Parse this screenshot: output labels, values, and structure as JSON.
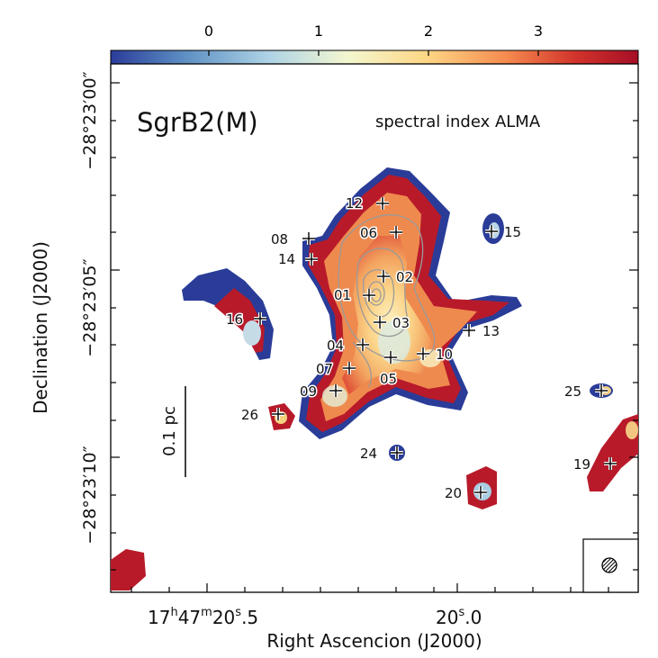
{
  "title": "SgrB2(M)",
  "subtitle": "spectral index ALMA",
  "colorbar": {
    "ticks": [
      "0",
      "1",
      "2",
      "3"
    ],
    "range": [
      -0.7,
      3.7
    ],
    "colormap": "RdYlBu_r",
    "stops": [
      "#2b3d9a",
      "#5d8fc3",
      "#aed3e6",
      "#f4f7cf",
      "#fdd685",
      "#f58b4f",
      "#d2342b",
      "#a50f26"
    ]
  },
  "axes": {
    "xlabel": "Right Ascencion (J2000)",
    "ylabel": "Declination (J2000)",
    "x_ticks": [
      {
        "h": "17",
        "m": "47",
        "s": "20",
        "frac": "5",
        "text": "17h47m20.5s"
      },
      {
        "s": "20",
        "frac": "0",
        "text": "20.0s"
      }
    ],
    "y_ticks": [
      {
        "deg": "−28°23′00″",
        "text": "−28°23'00\""
      },
      {
        "deg": "−28°23′05″",
        "text": "−28°23'05\""
      },
      {
        "deg": "−28°23′10″",
        "text": "−28°23'10\""
      }
    ]
  },
  "scalebar": {
    "label": "0.1 pc"
  },
  "beam": {
    "label": "beam",
    "fill": "hatched"
  },
  "sources": [
    {
      "id": "12"
    },
    {
      "id": "06"
    },
    {
      "id": "08"
    },
    {
      "id": "14"
    },
    {
      "id": "02"
    },
    {
      "id": "01"
    },
    {
      "id": "16"
    },
    {
      "id": "03"
    },
    {
      "id": "13"
    },
    {
      "id": "04"
    },
    {
      "id": "10"
    },
    {
      "id": "07"
    },
    {
      "id": "05"
    },
    {
      "id": "09"
    },
    {
      "id": "26"
    },
    {
      "id": "24"
    },
    {
      "id": "20"
    },
    {
      "id": "15"
    },
    {
      "id": "25"
    },
    {
      "id": "19"
    }
  ]
}
